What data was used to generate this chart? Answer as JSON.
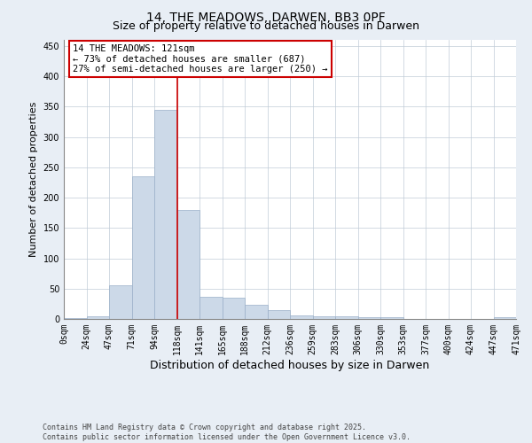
{
  "title_line1": "14, THE MEADOWS, DARWEN, BB3 0PF",
  "title_line2": "Size of property relative to detached houses in Darwen",
  "xlabel": "Distribution of detached houses by size in Darwen",
  "ylabel": "Number of detached properties",
  "bin_labels": [
    "0sqm",
    "24sqm",
    "47sqm",
    "71sqm",
    "94sqm",
    "118sqm",
    "141sqm",
    "165sqm",
    "188sqm",
    "212sqm",
    "236sqm",
    "259sqm",
    "283sqm",
    "306sqm",
    "330sqm",
    "353sqm",
    "377sqm",
    "400sqm",
    "424sqm",
    "447sqm",
    "471sqm"
  ],
  "bar_heights": [
    2,
    4,
    55,
    235,
    345,
    180,
    37,
    35,
    24,
    14,
    6,
    5,
    5,
    3,
    3,
    0,
    0,
    0,
    0,
    3
  ],
  "bar_color": "#ccd9e8",
  "bar_edgecolor": "#9ab0c8",
  "vline_x": 5,
  "vline_color": "#cc0000",
  "annotation_text": "14 THE MEADOWS: 121sqm\n← 73% of detached houses are smaller (687)\n27% of semi-detached houses are larger (250) →",
  "annotation_box_color": "white",
  "annotation_box_edgecolor": "#cc0000",
  "ylim": [
    0,
    460
  ],
  "yticks": [
    0,
    50,
    100,
    150,
    200,
    250,
    300,
    350,
    400,
    450
  ],
  "background_color": "#e8eef5",
  "plot_background": "white",
  "footer_line1": "Contains HM Land Registry data © Crown copyright and database right 2025.",
  "footer_line2": "Contains public sector information licensed under the Open Government Licence v3.0.",
  "title_fontsize": 10,
  "subtitle_fontsize": 9,
  "tick_fontsize": 7,
  "xlabel_fontsize": 9,
  "ylabel_fontsize": 8,
  "annot_fontsize": 7.5,
  "footer_fontsize": 6
}
